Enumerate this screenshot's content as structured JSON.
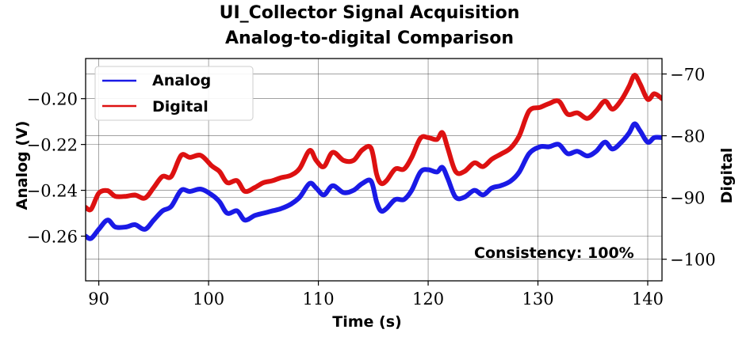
{
  "chart_data": {
    "type": "line",
    "title": "UI_Collector Signal Acquisition",
    "subtitle": "Analog-to-digital Comparison",
    "xlabel": "Time (s)",
    "ylabel": "Analog (V)",
    "ylabel_right": "Digital",
    "xlim": [
      88.8,
      141.3
    ],
    "ylim": [
      -0.2795,
      -0.1825
    ],
    "ylim_right": [
      -103.5,
      -67.5
    ],
    "xticks": [
      90,
      100,
      110,
      120,
      130,
      140
    ],
    "xtick_labels": [
      "90",
      "100",
      "110",
      "120",
      "130",
      "140"
    ],
    "yticks": [
      -0.26,
      -0.24,
      -0.22,
      -0.2
    ],
    "ytick_labels": [
      "−0.26",
      "−0.24",
      "−0.22",
      "−0.20"
    ],
    "yticks_right": [
      -100,
      -90,
      -80,
      -70
    ],
    "ytick_labels_right": [
      "−100",
      "−90",
      "−80",
      "−70"
    ],
    "grid": true,
    "legend_position": "top-left",
    "annotation": "Consistency: 100%",
    "series": [
      {
        "name": "Analog",
        "color": "#1a1ae6",
        "axis": "left",
        "x": [
          88.8,
          89.3,
          90.0,
          90.8,
          91.5,
          92.5,
          93.3,
          94.2,
          95.0,
          95.8,
          96.6,
          97.5,
          98.3,
          99.3,
          100.3,
          101.0,
          101.7,
          102.6,
          103.3,
          104.2,
          105.0,
          105.8,
          106.6,
          107.5,
          108.3,
          109.2,
          109.8,
          110.5,
          111.3,
          112.3,
          113.2,
          114.0,
          114.8,
          115.3,
          115.7,
          116.2,
          117.0,
          117.8,
          118.5,
          119.3,
          120.0,
          120.8,
          121.3,
          121.8,
          122.5,
          123.3,
          124.2,
          125.0,
          125.8,
          126.6,
          127.5,
          128.3,
          129.2,
          130.2,
          131.0,
          131.9,
          132.7,
          133.6,
          134.5,
          135.3,
          136.1,
          136.8,
          137.6,
          138.3,
          138.8,
          139.3,
          140.0,
          140.6,
          141.3
        ],
        "values": [
          -0.26,
          -0.261,
          -0.257,
          -0.253,
          -0.256,
          -0.256,
          -0.255,
          -0.257,
          -0.253,
          -0.249,
          -0.247,
          -0.24,
          -0.2405,
          -0.2395,
          -0.242,
          -0.245,
          -0.25,
          -0.249,
          -0.253,
          -0.251,
          -0.25,
          -0.249,
          -0.248,
          -0.246,
          -0.243,
          -0.237,
          -0.239,
          -0.242,
          -0.238,
          -0.241,
          -0.24,
          -0.237,
          -0.236,
          -0.245,
          -0.249,
          -0.248,
          -0.244,
          -0.244,
          -0.24,
          -0.232,
          -0.231,
          -0.232,
          -0.23,
          -0.235,
          -0.243,
          -0.243,
          -0.24,
          -0.242,
          -0.239,
          -0.238,
          -0.236,
          -0.232,
          -0.224,
          -0.221,
          -0.221,
          -0.22,
          -0.224,
          -0.223,
          -0.225,
          -0.223,
          -0.219,
          -0.222,
          -0.219,
          -0.215,
          -0.211,
          -0.214,
          -0.219,
          -0.217,
          -0.217
        ]
      },
      {
        "name": "Digital",
        "color": "#dd1111",
        "axis": "right",
        "x": [
          88.8,
          89.3,
          90.0,
          90.8,
          91.5,
          92.5,
          93.3,
          94.2,
          95.0,
          95.8,
          96.6,
          97.5,
          98.3,
          99.3,
          100.3,
          101.0,
          101.7,
          102.6,
          103.3,
          104.2,
          105.0,
          105.8,
          106.6,
          107.5,
          108.3,
          109.2,
          109.8,
          110.5,
          111.3,
          112.3,
          113.2,
          114.0,
          114.8,
          115.3,
          115.7,
          116.2,
          117.0,
          117.8,
          118.5,
          119.3,
          120.0,
          120.8,
          121.3,
          121.8,
          122.5,
          123.3,
          124.2,
          125.0,
          125.8,
          126.6,
          127.5,
          128.3,
          129.2,
          130.2,
          131.0,
          131.9,
          132.7,
          133.6,
          134.5,
          135.3,
          136.1,
          136.8,
          137.6,
          138.3,
          138.8,
          139.3,
          140.0,
          140.6,
          141.3
        ],
        "values": [
          -91.6,
          -91.9,
          -89.3,
          -88.9,
          -89.8,
          -89.8,
          -89.6,
          -90.1,
          -88.4,
          -86.6,
          -86.6,
          -83.2,
          -83.5,
          -83.2,
          -84.9,
          -85.8,
          -87.6,
          -87.3,
          -89.0,
          -88.4,
          -87.6,
          -87.3,
          -86.8,
          -86.4,
          -85.3,
          -82.4,
          -84.0,
          -85.0,
          -82.7,
          -84.0,
          -84.0,
          -82.3,
          -82.0,
          -86.2,
          -87.7,
          -87.3,
          -85.4,
          -85.4,
          -83.5,
          -80.4,
          -80.3,
          -80.6,
          -79.5,
          -82.1,
          -85.8,
          -85.8,
          -84.4,
          -85.0,
          -83.8,
          -83.0,
          -82.0,
          -80.0,
          -76.0,
          -75.4,
          -74.8,
          -74.4,
          -76.5,
          -76.3,
          -77.2,
          -76.0,
          -74.4,
          -75.7,
          -74.2,
          -72.0,
          -70.2,
          -71.6,
          -74.1,
          -73.2,
          -74.0
        ]
      }
    ]
  }
}
